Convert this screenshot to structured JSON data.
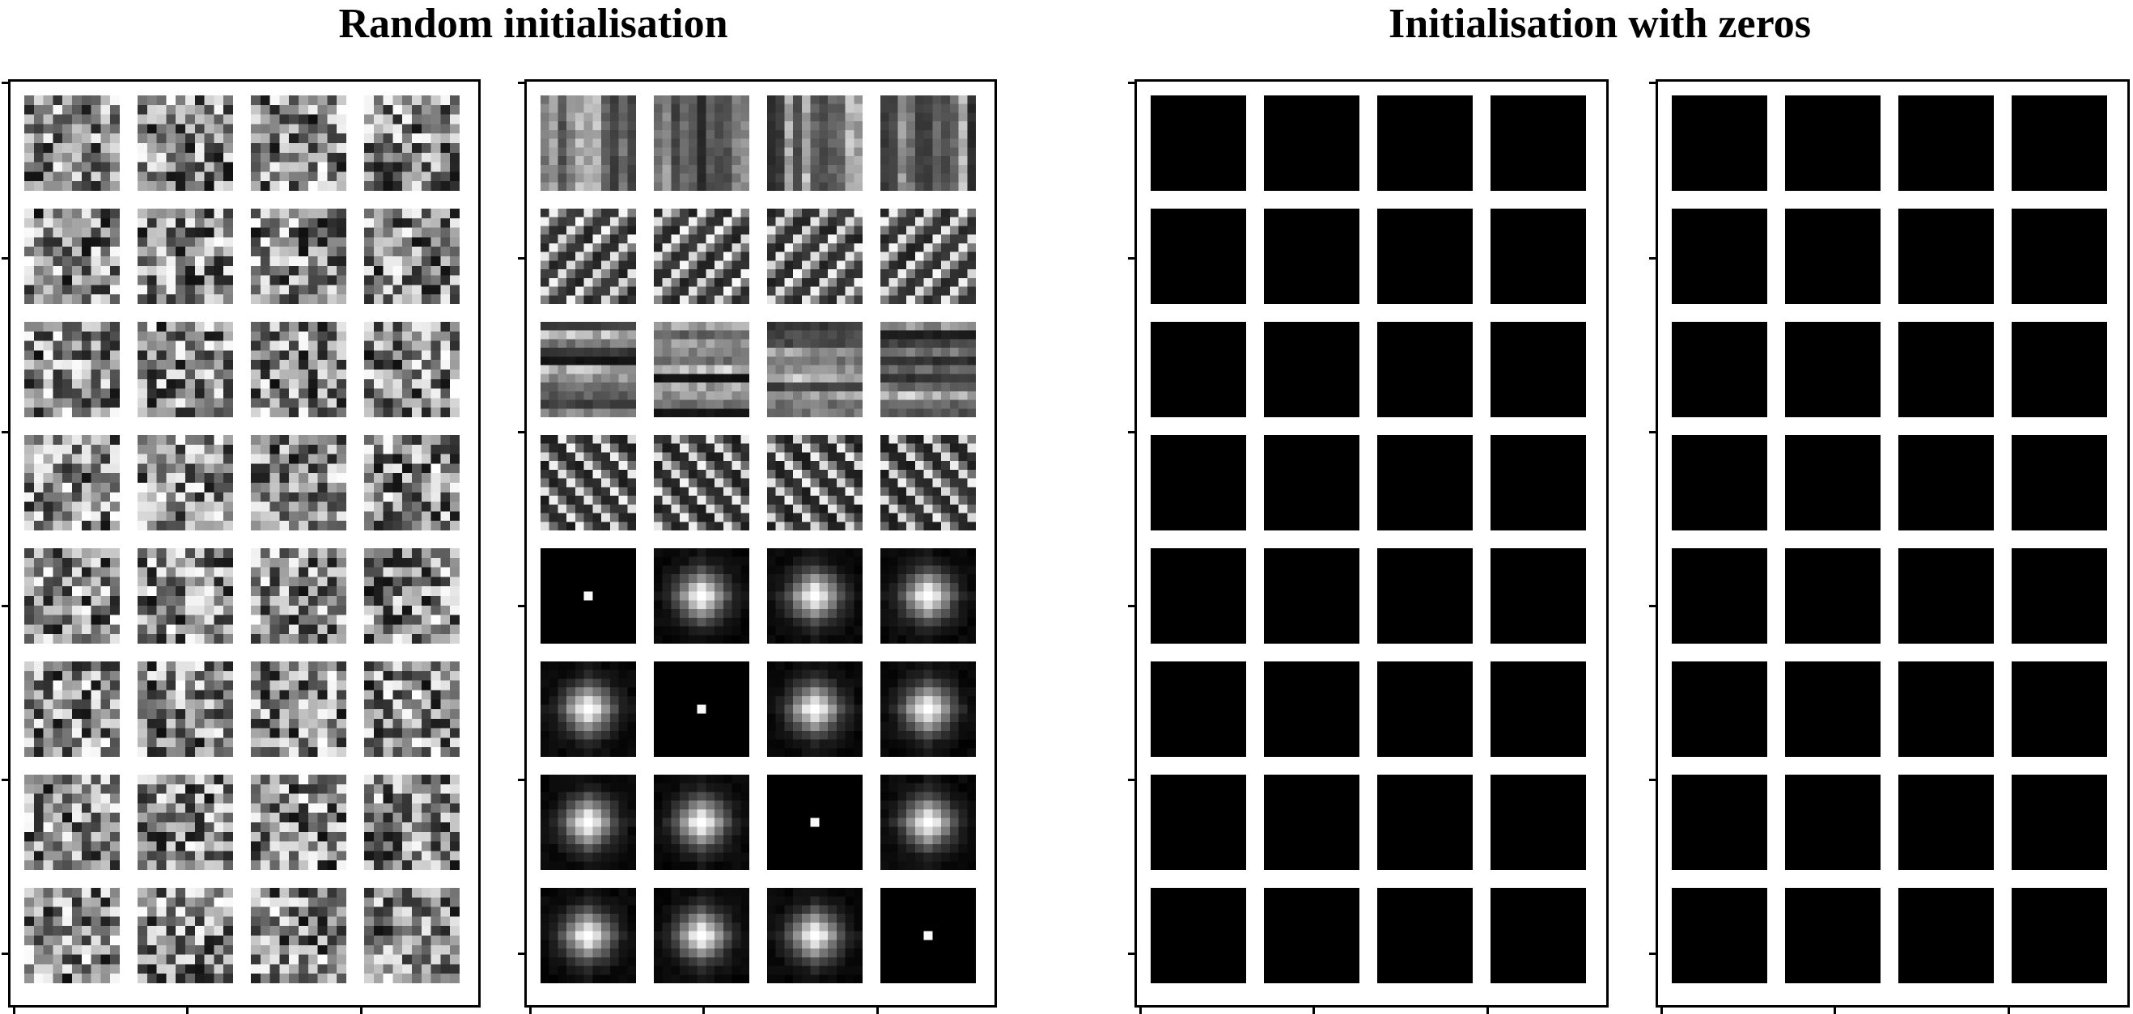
{
  "titles": {
    "left": "Random initialisation",
    "right": "Initialisation with zeros"
  },
  "panels": [
    {
      "name": "random-init-before",
      "group": "left",
      "content": "random-noise"
    },
    {
      "name": "random-init-trained",
      "group": "left",
      "content": "learned-filters"
    },
    {
      "name": "zero-init-before",
      "group": "right",
      "content": "zeros"
    },
    {
      "name": "zero-init-trained",
      "group": "right",
      "content": "zeros"
    }
  ],
  "grid": {
    "rows": 8,
    "cols": 4
  },
  "learned_filter_rows": [
    "vertical-stripes",
    "diagonal-up",
    "horizontal-stripes",
    "diagonal-down",
    "blob",
    "blob",
    "blob",
    "blob"
  ],
  "point_filters": [
    [
      4,
      0
    ],
    [
      5,
      1
    ],
    [
      6,
      2
    ],
    [
      7,
      3
    ]
  ],
  "colors": {
    "background": "#ffffff",
    "frame": "#000000",
    "zero_filter": "#000000"
  }
}
